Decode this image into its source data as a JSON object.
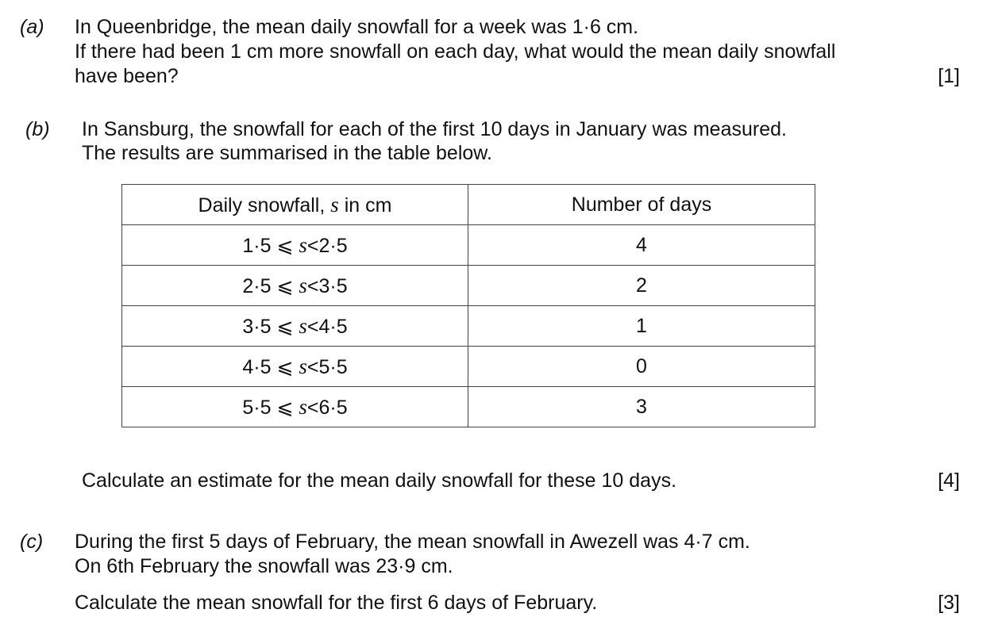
{
  "part_a": {
    "label": "(a)",
    "lines": [
      "In Queenbridge, the mean daily snowfall for a week was 1·6 cm.",
      "If there had been 1 cm more snowfall on each day, what would the mean daily snowfall",
      "have been?"
    ],
    "marks": "[1]"
  },
  "part_b": {
    "label": "(b)",
    "lines": [
      "In Sansburg, the snowfall for each of the first 10 days in January was measured.",
      "The results are summarised in the table below."
    ],
    "table": {
      "header_1_pre": "Daily snowfall, ",
      "header_1_var": "s",
      "header_1_post": " in cm",
      "header_2": "Number of days",
      "op_le": "⩽",
      "var": "s",
      "op_lt": "<",
      "rows": [
        {
          "lower": "1·5",
          "upper": "2·5",
          "days": "4"
        },
        {
          "lower": "2·5",
          "upper": "3·5",
          "days": "2"
        },
        {
          "lower": "3·5",
          "upper": "4·5",
          "days": "1"
        },
        {
          "lower": "4·5",
          "upper": "5·5",
          "days": "0"
        },
        {
          "lower": "5·5",
          "upper": "6·5",
          "days": "3"
        }
      ]
    },
    "question": "Calculate an estimate for the mean daily snowfall for these 10 days.",
    "marks": "[4]"
  },
  "part_c": {
    "label": "(c)",
    "lines": [
      "During the first 5 days of February, the mean snowfall in Awezell was 4·7 cm.",
      "On 6th February the snowfall was 23·9 cm."
    ],
    "question": "Calculate the mean snowfall for the first 6 days of February.",
    "marks": "[3]"
  }
}
